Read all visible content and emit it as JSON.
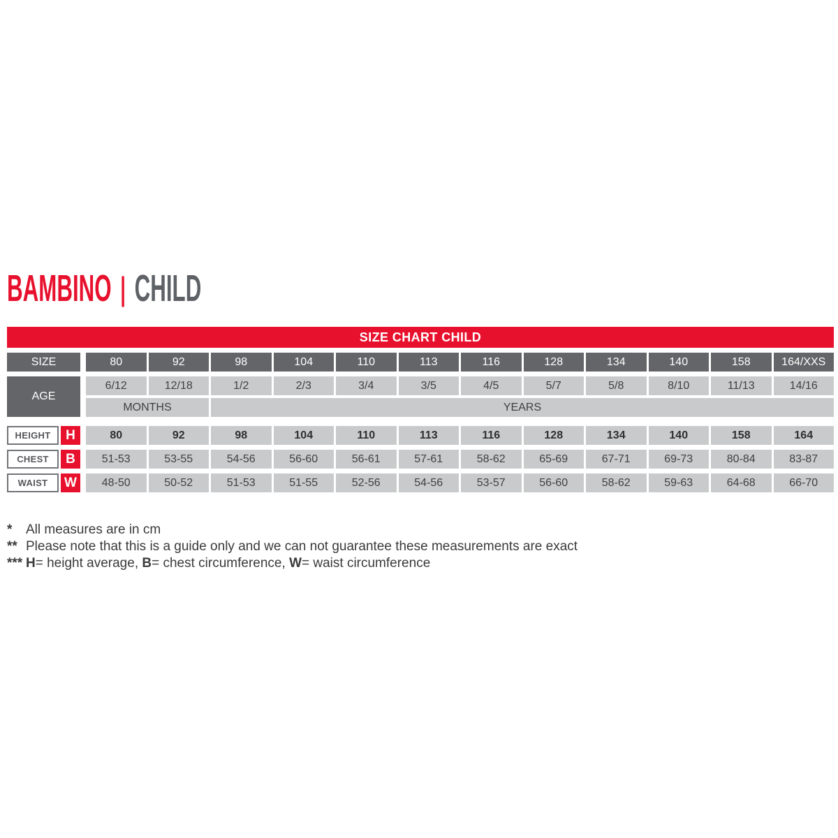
{
  "title": {
    "brand": "BAMBINO",
    "separator": "|",
    "category": "CHILD"
  },
  "banner": {
    "label": "SIZE CHART CHILD"
  },
  "colors": {
    "accent_red": "#e8112d",
    "dark_gray": "#646568",
    "light_gray": "#c9cacb"
  },
  "chart_data": {
    "type": "table",
    "title": "SIZE CHART CHILD",
    "size_row": {
      "label": "SIZE",
      "values": [
        "80",
        "92",
        "98",
        "104",
        "110",
        "113",
        "116",
        "128",
        "134",
        "140",
        "158",
        "164/XXS"
      ]
    },
    "age_row": {
      "label": "AGE",
      "values": [
        "6/12",
        "12/18",
        "1/2",
        "2/3",
        "3/4",
        "3/5",
        "4/5",
        "5/7",
        "5/8",
        "8/10",
        "11/13",
        "14/16"
      ],
      "unit_months": "MONTHS",
      "unit_years": "YEARS"
    },
    "height_row": {
      "label": "HEIGHT",
      "letter": "H",
      "values": [
        "80",
        "92",
        "98",
        "104",
        "110",
        "113",
        "116",
        "128",
        "134",
        "140",
        "158",
        "164"
      ]
    },
    "chest_row": {
      "label": "CHEST",
      "letter": "B",
      "values": [
        "51-53",
        "53-55",
        "54-56",
        "56-60",
        "56-61",
        "57-61",
        "58-62",
        "65-69",
        "67-71",
        "69-73",
        "80-84",
        "83-87"
      ]
    },
    "waist_row": {
      "label": "WAIST",
      "letter": "W",
      "values": [
        "48-50",
        "50-52",
        "51-53",
        "51-55",
        "52-56",
        "54-56",
        "53-57",
        "56-60",
        "58-62",
        "59-63",
        "64-68",
        "66-70"
      ]
    }
  },
  "footnotes": [
    {
      "marker": "*",
      "text": "All measures are in cm"
    },
    {
      "marker": "**",
      "text": "Please note that this is a guide only and we can not guarantee these measurements are exact"
    },
    {
      "marker": "***",
      "parts": [
        {
          "b": "H"
        },
        {
          "t": "= height average, "
        },
        {
          "b": "B"
        },
        {
          "t": "= chest circumference, "
        },
        {
          "b": "W"
        },
        {
          "t": "= waist circumference"
        }
      ]
    }
  ]
}
